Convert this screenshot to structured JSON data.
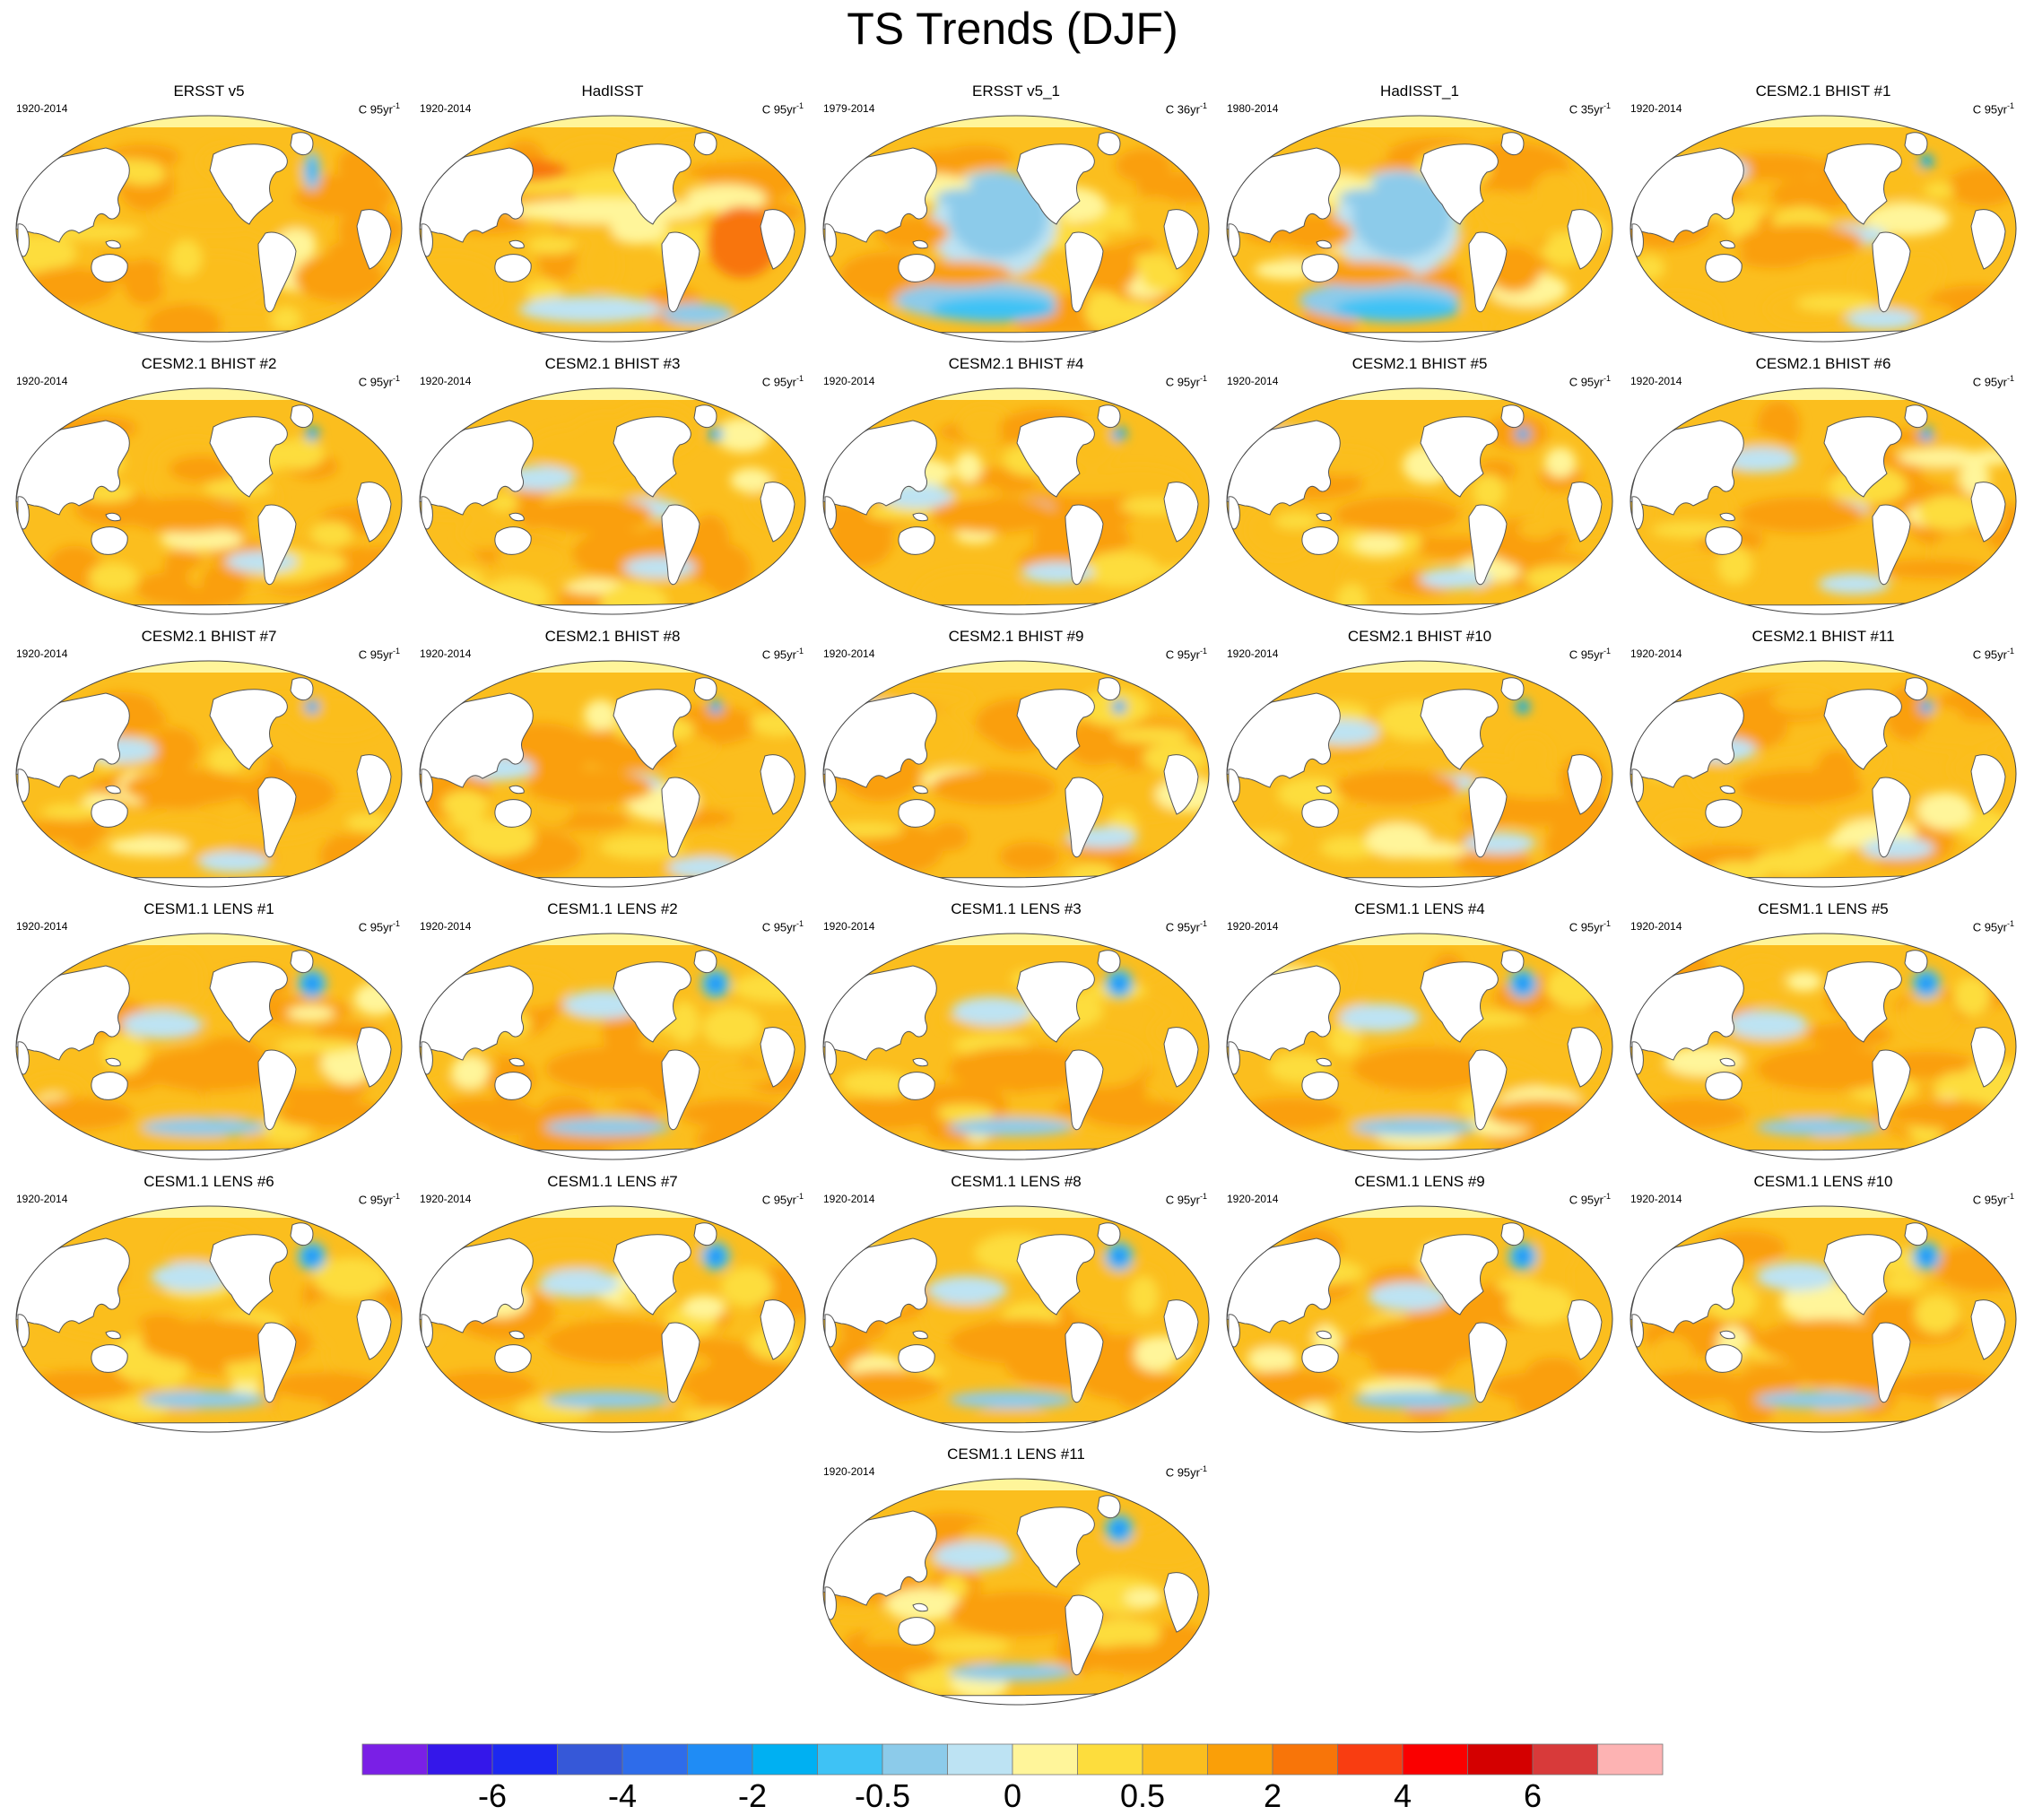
{
  "chart_data": {
    "type": "heatmap",
    "title": "TS Trends (DJF)",
    "projection": "global ellipse, Pacific-centered",
    "variable": "TS",
    "season": "DJF",
    "panels": [
      {
        "name": "ERSST v5",
        "period": "1920-2014",
        "units": "C 95yr",
        "pattern": "warm"
      },
      {
        "name": "HadISST",
        "period": "1920-2014",
        "units": "C 95yr",
        "pattern": "had"
      },
      {
        "name": "ERSST v5_1",
        "period": "1979-2014",
        "units": "C 36yr",
        "pattern": "lanina"
      },
      {
        "name": "HadISST_1",
        "period": "1980-2014",
        "units": "C 35yr",
        "pattern": "lanina"
      },
      {
        "name": "CESM2.1 BHIST #1",
        "period": "1920-2014",
        "units": "C 95yr",
        "pattern": "model"
      },
      {
        "name": "CESM2.1 BHIST #2",
        "period": "1920-2014",
        "units": "C 95yr",
        "pattern": "model"
      },
      {
        "name": "CESM2.1 BHIST #3",
        "period": "1920-2014",
        "units": "C 95yr",
        "pattern": "model"
      },
      {
        "name": "CESM2.1 BHIST #4",
        "period": "1920-2014",
        "units": "C 95yr",
        "pattern": "model"
      },
      {
        "name": "CESM2.1 BHIST #5",
        "period": "1920-2014",
        "units": "C 95yr",
        "pattern": "model"
      },
      {
        "name": "CESM2.1 BHIST #6",
        "period": "1920-2014",
        "units": "C 95yr",
        "pattern": "model"
      },
      {
        "name": "CESM2.1 BHIST #7",
        "period": "1920-2014",
        "units": "C 95yr",
        "pattern": "model"
      },
      {
        "name": "CESM2.1 BHIST #8",
        "period": "1920-2014",
        "units": "C 95yr",
        "pattern": "model"
      },
      {
        "name": "CESM2.1 BHIST #9",
        "period": "1920-2014",
        "units": "C 95yr",
        "pattern": "model"
      },
      {
        "name": "CESM2.1 BHIST #10",
        "period": "1920-2014",
        "units": "C 95yr",
        "pattern": "model"
      },
      {
        "name": "CESM2.1 BHIST #11",
        "period": "1920-2014",
        "units": "C 95yr",
        "pattern": "model"
      },
      {
        "name": "CESM1.1 LENS #1",
        "period": "1920-2014",
        "units": "C 95yr",
        "pattern": "lens"
      },
      {
        "name": "CESM1.1 LENS #2",
        "period": "1920-2014",
        "units": "C 95yr",
        "pattern": "lens"
      },
      {
        "name": "CESM1.1 LENS #3",
        "period": "1920-2014",
        "units": "C 95yr",
        "pattern": "lens"
      },
      {
        "name": "CESM1.1 LENS #4",
        "period": "1920-2014",
        "units": "C 95yr",
        "pattern": "lens"
      },
      {
        "name": "CESM1.1 LENS #5",
        "period": "1920-2014",
        "units": "C 95yr",
        "pattern": "lens"
      },
      {
        "name": "CESM1.1 LENS #6",
        "period": "1920-2014",
        "units": "C 95yr",
        "pattern": "lens"
      },
      {
        "name": "CESM1.1 LENS #7",
        "period": "1920-2014",
        "units": "C 95yr",
        "pattern": "lens"
      },
      {
        "name": "CESM1.1 LENS #8",
        "period": "1920-2014",
        "units": "C 95yr",
        "pattern": "lens"
      },
      {
        "name": "CESM1.1 LENS #9",
        "period": "1920-2014",
        "units": "C 95yr",
        "pattern": "lens"
      },
      {
        "name": "CESM1.1 LENS #10",
        "period": "1920-2014",
        "units": "C 95yr",
        "pattern": "lens"
      },
      {
        "name": "CESM1.1 LENS #11",
        "period": "1920-2014",
        "units": "C 95yr",
        "pattern": "lens"
      }
    ],
    "units_exponent": "-1",
    "colorbar": {
      "colors": [
        "#7a1fe6",
        "#3417ea",
        "#1d28f0",
        "#3658d8",
        "#2e6cea",
        "#1f8cf5",
        "#00b0f2",
        "#3ec2f5",
        "#8ccbea",
        "#bde3f3",
        "#fff59a",
        "#fddd3d",
        "#fbbe1e",
        "#fa9f08",
        "#f87509",
        "#f93d11",
        "#fa0000",
        "#d40000",
        "#d83a3a",
        "#fdb3b3"
      ],
      "labels": [
        "-6",
        "-4",
        "-2",
        "-0.5",
        "0",
        "0.5",
        "2",
        "4",
        "6"
      ],
      "label_boundaries": [
        2,
        4,
        6,
        8,
        10,
        12,
        14,
        16,
        18
      ]
    },
    "land_color": "#ffffff",
    "coastline_color": "#555555"
  }
}
